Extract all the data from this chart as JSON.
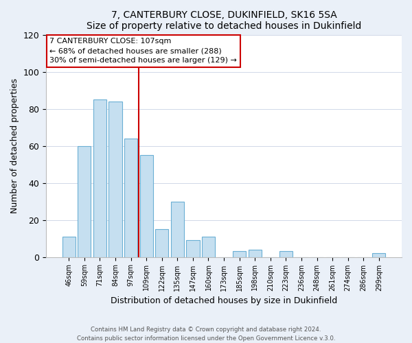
{
  "title": "7, CANTERBURY CLOSE, DUKINFIELD, SK16 5SA",
  "subtitle": "Size of property relative to detached houses in Dukinfield",
  "xlabel": "Distribution of detached houses by size in Dukinfield",
  "ylabel": "Number of detached properties",
  "bar_labels": [
    "46sqm",
    "59sqm",
    "71sqm",
    "84sqm",
    "97sqm",
    "109sqm",
    "122sqm",
    "135sqm",
    "147sqm",
    "160sqm",
    "173sqm",
    "185sqm",
    "198sqm",
    "210sqm",
    "223sqm",
    "236sqm",
    "248sqm",
    "261sqm",
    "274sqm",
    "286sqm",
    "299sqm"
  ],
  "bar_heights": [
    11,
    60,
    85,
    84,
    64,
    55,
    15,
    30,
    9,
    11,
    0,
    3,
    4,
    0,
    3,
    0,
    0,
    0,
    0,
    0,
    2
  ],
  "bar_color": "#c5dff0",
  "bar_edge_color": "#6aafd4",
  "vline_index": 5,
  "vline_color": "#cc0000",
  "annotation_title": "7 CANTERBURY CLOSE: 107sqm",
  "annotation_line1": "← 68% of detached houses are smaller (288)",
  "annotation_line2": "30% of semi-detached houses are larger (129) →",
  "ylim": [
    0,
    120
  ],
  "yticks": [
    0,
    20,
    40,
    60,
    80,
    100,
    120
  ],
  "footer1": "Contains HM Land Registry data © Crown copyright and database right 2024.",
  "footer2": "Contains public sector information licensed under the Open Government Licence v.3.0.",
  "bg_color": "#eaf0f8",
  "plot_bg_color": "#ffffff",
  "grid_color": "#d0d8e8"
}
